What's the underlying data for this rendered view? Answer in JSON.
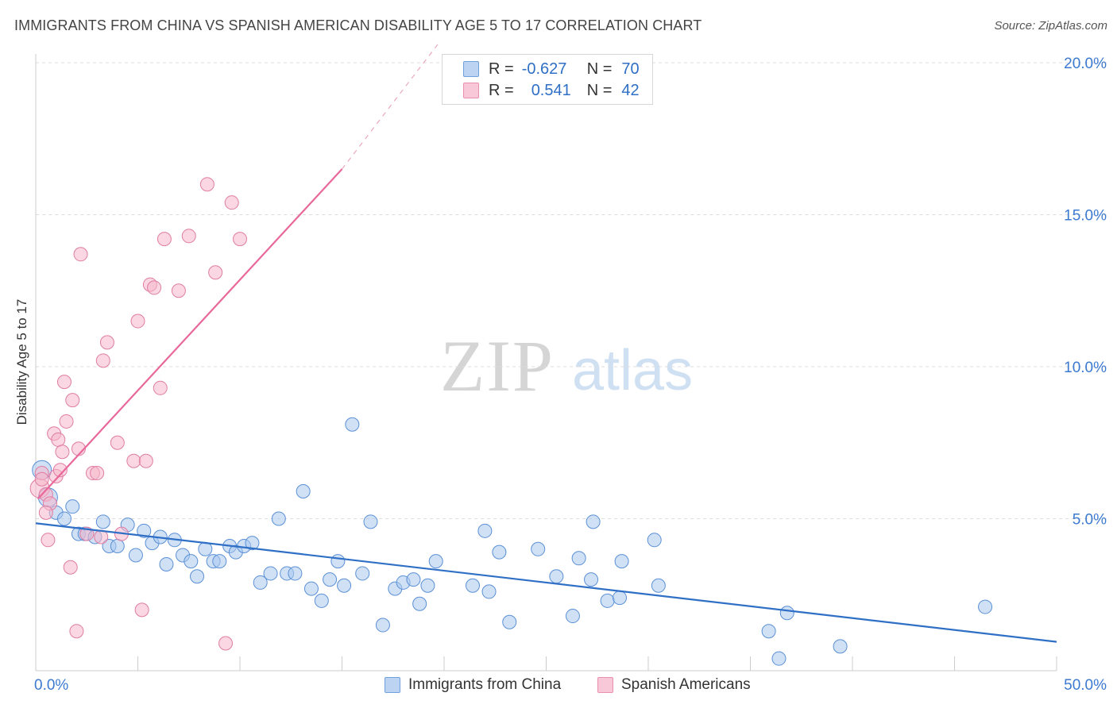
{
  "title": "IMMIGRANTS FROM CHINA VS SPANISH AMERICAN DISABILITY AGE 5 TO 17 CORRELATION CHART",
  "source": "Source: ZipAtlas.com",
  "watermark": {
    "zip": "ZIP",
    "atlas": "atlas"
  },
  "colors": {
    "blue": "#2f6fc6",
    "blue_fill": "#a9c8ef",
    "pink": "#e8689a",
    "pink_fill": "#f5b6cb",
    "axis_label": "#3c7ad0",
    "grid": "#dddddd"
  },
  "legend": {
    "blue": {
      "r_label": "R =",
      "r_value": "-0.627",
      "n_label": "N =",
      "n_value": "70"
    },
    "pink": {
      "r_label": "R =",
      "r_value": "0.541",
      "n_label": "N =",
      "n_value": "42"
    }
  },
  "chart_data": {
    "type": "scatter",
    "title": "IMMIGRANTS FROM CHINA VS SPANISH AMERICAN DISABILITY AGE 5 TO 17 CORRELATION CHART",
    "xlabel": "",
    "ylabel": "Disability Age 5 to 17",
    "xlim": [
      0,
      50
    ],
    "ylim": [
      0,
      20
    ],
    "x_tick_labels": [
      "0.0%",
      "50.0%"
    ],
    "y_ticks": [
      5,
      10,
      15,
      20
    ],
    "y_tick_labels": [
      "5.0%",
      "10.0%",
      "15.0%",
      "20.0%"
    ],
    "grid": true,
    "legend_position": "bottom",
    "series": [
      {
        "name": "Immigrants from China",
        "color": "#2f6fc6",
        "trend": {
          "x": [
            0,
            50
          ],
          "y": [
            4.85,
            0.95
          ]
        },
        "points": [
          [
            0.3,
            6.6
          ],
          [
            0.6,
            5.7
          ],
          [
            1.0,
            5.2
          ],
          [
            1.4,
            5.0
          ],
          [
            1.8,
            5.4
          ],
          [
            2.1,
            4.5
          ],
          [
            2.4,
            4.5
          ],
          [
            2.9,
            4.4
          ],
          [
            3.3,
            4.9
          ],
          [
            3.6,
            4.1
          ],
          [
            4.0,
            4.1
          ],
          [
            4.5,
            4.8
          ],
          [
            4.9,
            3.8
          ],
          [
            5.3,
            4.6
          ],
          [
            5.7,
            4.2
          ],
          [
            6.1,
            4.4
          ],
          [
            6.4,
            3.5
          ],
          [
            6.8,
            4.3
          ],
          [
            7.2,
            3.8
          ],
          [
            7.6,
            3.6
          ],
          [
            7.9,
            3.1
          ],
          [
            8.3,
            4.0
          ],
          [
            8.7,
            3.6
          ],
          [
            9.0,
            3.6
          ],
          [
            9.5,
            4.1
          ],
          [
            9.8,
            3.9
          ],
          [
            10.2,
            4.1
          ],
          [
            10.6,
            4.2
          ],
          [
            11.0,
            2.9
          ],
          [
            11.5,
            3.2
          ],
          [
            11.9,
            5.0
          ],
          [
            12.3,
            3.2
          ],
          [
            12.7,
            3.2
          ],
          [
            13.1,
            5.9
          ],
          [
            13.5,
            2.7
          ],
          [
            14.0,
            2.3
          ],
          [
            14.4,
            3.0
          ],
          [
            14.8,
            3.6
          ],
          [
            15.1,
            2.8
          ],
          [
            15.5,
            8.1
          ],
          [
            16.0,
            3.2
          ],
          [
            16.4,
            4.9
          ],
          [
            17.0,
            1.5
          ],
          [
            17.6,
            2.7
          ],
          [
            18.0,
            2.9
          ],
          [
            18.5,
            3.0
          ],
          [
            18.8,
            2.2
          ],
          [
            19.2,
            2.8
          ],
          [
            19.6,
            3.6
          ],
          [
            21.4,
            2.8
          ],
          [
            22.0,
            4.6
          ],
          [
            22.2,
            2.6
          ],
          [
            22.7,
            3.9
          ],
          [
            23.2,
            1.6
          ],
          [
            24.6,
            4.0
          ],
          [
            25.5,
            3.1
          ],
          [
            26.3,
            1.8
          ],
          [
            26.6,
            3.7
          ],
          [
            27.2,
            3.0
          ],
          [
            27.3,
            4.9
          ],
          [
            28.0,
            2.3
          ],
          [
            28.6,
            2.4
          ],
          [
            28.7,
            3.6
          ],
          [
            30.5,
            2.8
          ],
          [
            30.3,
            4.3
          ],
          [
            35.9,
            1.3
          ],
          [
            36.4,
            0.4
          ],
          [
            36.8,
            1.9
          ],
          [
            39.4,
            0.8
          ],
          [
            46.5,
            2.1
          ]
        ]
      },
      {
        "name": "Spanish Americans",
        "color": "#e8689a",
        "trend": {
          "x": [
            0.1,
            15.0
          ],
          "y": [
            5.65,
            16.5
          ],
          "dashed_to": {
            "x": 19.8,
            "y": 20.7
          }
        },
        "points": [
          [
            0.2,
            6.0
          ],
          [
            0.3,
            6.5
          ],
          [
            0.5,
            5.8
          ],
          [
            0.6,
            4.3
          ],
          [
            0.7,
            5.5
          ],
          [
            0.9,
            7.8
          ],
          [
            1.0,
            6.4
          ],
          [
            1.1,
            7.6
          ],
          [
            1.2,
            6.6
          ],
          [
            1.3,
            7.2
          ],
          [
            1.4,
            9.5
          ],
          [
            1.5,
            8.2
          ],
          [
            1.7,
            3.4
          ],
          [
            1.8,
            8.9
          ],
          [
            2.0,
            1.3
          ],
          [
            2.1,
            7.3
          ],
          [
            2.2,
            13.7
          ],
          [
            2.5,
            4.5
          ],
          [
            2.8,
            6.5
          ],
          [
            3.0,
            6.5
          ],
          [
            3.2,
            4.4
          ],
          [
            3.3,
            10.2
          ],
          [
            3.5,
            10.8
          ],
          [
            4.0,
            7.5
          ],
          [
            4.2,
            4.5
          ],
          [
            4.8,
            6.9
          ],
          [
            5.0,
            11.5
          ],
          [
            5.2,
            2.0
          ],
          [
            5.4,
            6.9
          ],
          [
            5.6,
            12.7
          ],
          [
            5.8,
            12.6
          ],
          [
            6.1,
            9.3
          ],
          [
            6.3,
            14.2
          ],
          [
            7.0,
            12.5
          ],
          [
            7.5,
            14.3
          ],
          [
            8.4,
            16.0
          ],
          [
            8.8,
            13.1
          ],
          [
            9.3,
            0.9
          ],
          [
            9.6,
            15.4
          ],
          [
            10.0,
            14.2
          ],
          [
            0.3,
            6.3
          ],
          [
            0.5,
            5.2
          ]
        ]
      }
    ]
  }
}
